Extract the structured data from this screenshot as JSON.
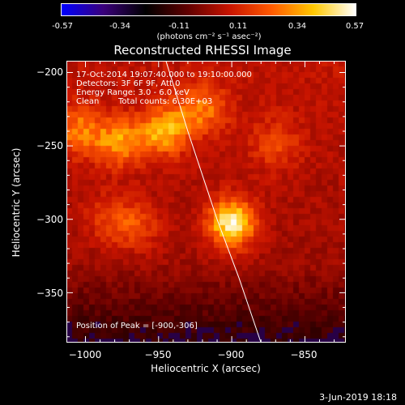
{
  "colorbar": {
    "ticks": [
      "-0.57",
      "-0.34",
      "-0.11",
      "0.11",
      "0.34",
      "0.57"
    ],
    "units": "(photons cm⁻² s⁻¹ asec⁻²)",
    "colors": [
      "#0000ff",
      "#3a007a",
      "#000000",
      "#600000",
      "#c81400",
      "#ff5a00",
      "#ffc800",
      "#ffffff"
    ]
  },
  "chart_data": {
    "type": "heatmap",
    "title": "Reconstructed RHESSI Image",
    "xlabel": "Heliocentric X (arcsec)",
    "ylabel": "Heliocentric Y (arcsec)",
    "xlim": [
      -1013,
      -822
    ],
    "ylim": [
      -384,
      -192
    ],
    "xticks": [
      "−1000",
      "−950",
      "−900",
      "−850"
    ],
    "yticks": [
      "−200",
      "−250",
      "−300",
      "−350"
    ],
    "annotations": {
      "time_range": "17-Oct-2014 19:07:40.000 to 19:10:00.000",
      "detectors": "Detectors: 3F 6F 9F, Att 0",
      "energy": "Energy Range: 3.0 - 6.0 keV",
      "method": "Clean",
      "counts": "Total counts: 6.30E+03",
      "peak": "Position of Peak = [-900,-306]"
    },
    "peak": {
      "x": -900,
      "y": -306,
      "value": 0.57
    },
    "sources": [
      {
        "x": -900,
        "y": -303,
        "value": 0.57
      },
      {
        "x": -946,
        "y": -240,
        "value": 0.4
      },
      {
        "x": -977,
        "y": -248,
        "value": 0.34
      },
      {
        "x": -1005,
        "y": -240,
        "value": 0.3
      },
      {
        "x": -920,
        "y": -225,
        "value": 0.28
      },
      {
        "x": -965,
        "y": -305,
        "value": 0.22
      },
      {
        "x": -870,
        "y": -250,
        "value": 0.2
      },
      {
        "x": -985,
        "y": -300,
        "value": 0.18
      }
    ],
    "limb": [
      [
        -945,
        -192
      ],
      [
        -930,
        -240
      ],
      [
        -910,
        -300
      ],
      [
        -895,
        -340
      ],
      [
        -880,
        -384
      ]
    ]
  },
  "footer": {
    "date": "3-Jun-2019 18:18"
  }
}
